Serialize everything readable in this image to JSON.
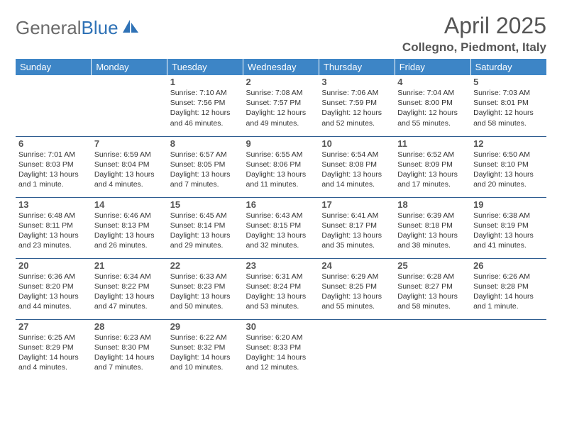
{
  "logo": {
    "text1": "General",
    "text2": "Blue"
  },
  "title": "April 2025",
  "location": "Collegno, Piedmont, Italy",
  "colors": {
    "header_bg": "#3d85c6",
    "header_text": "#ffffff",
    "border": "#2f5d91",
    "logo_gray": "#6b6b6b",
    "logo_blue": "#2f72b6",
    "title_color": "#555555",
    "daynum_color": "#555555",
    "body_text": "#333333"
  },
  "weekdays": [
    "Sunday",
    "Monday",
    "Tuesday",
    "Wednesday",
    "Thursday",
    "Friday",
    "Saturday"
  ],
  "weeks": [
    [
      null,
      null,
      {
        "n": "1",
        "sr": "7:10 AM",
        "ss": "7:56 PM",
        "dl": "12 hours and 46 minutes."
      },
      {
        "n": "2",
        "sr": "7:08 AM",
        "ss": "7:57 PM",
        "dl": "12 hours and 49 minutes."
      },
      {
        "n": "3",
        "sr": "7:06 AM",
        "ss": "7:59 PM",
        "dl": "12 hours and 52 minutes."
      },
      {
        "n": "4",
        "sr": "7:04 AM",
        "ss": "8:00 PM",
        "dl": "12 hours and 55 minutes."
      },
      {
        "n": "5",
        "sr": "7:03 AM",
        "ss": "8:01 PM",
        "dl": "12 hours and 58 minutes."
      }
    ],
    [
      {
        "n": "6",
        "sr": "7:01 AM",
        "ss": "8:03 PM",
        "dl": "13 hours and 1 minute."
      },
      {
        "n": "7",
        "sr": "6:59 AM",
        "ss": "8:04 PM",
        "dl": "13 hours and 4 minutes."
      },
      {
        "n": "8",
        "sr": "6:57 AM",
        "ss": "8:05 PM",
        "dl": "13 hours and 7 minutes."
      },
      {
        "n": "9",
        "sr": "6:55 AM",
        "ss": "8:06 PM",
        "dl": "13 hours and 11 minutes."
      },
      {
        "n": "10",
        "sr": "6:54 AM",
        "ss": "8:08 PM",
        "dl": "13 hours and 14 minutes."
      },
      {
        "n": "11",
        "sr": "6:52 AM",
        "ss": "8:09 PM",
        "dl": "13 hours and 17 minutes."
      },
      {
        "n": "12",
        "sr": "6:50 AM",
        "ss": "8:10 PM",
        "dl": "13 hours and 20 minutes."
      }
    ],
    [
      {
        "n": "13",
        "sr": "6:48 AM",
        "ss": "8:11 PM",
        "dl": "13 hours and 23 minutes."
      },
      {
        "n": "14",
        "sr": "6:46 AM",
        "ss": "8:13 PM",
        "dl": "13 hours and 26 minutes."
      },
      {
        "n": "15",
        "sr": "6:45 AM",
        "ss": "8:14 PM",
        "dl": "13 hours and 29 minutes."
      },
      {
        "n": "16",
        "sr": "6:43 AM",
        "ss": "8:15 PM",
        "dl": "13 hours and 32 minutes."
      },
      {
        "n": "17",
        "sr": "6:41 AM",
        "ss": "8:17 PM",
        "dl": "13 hours and 35 minutes."
      },
      {
        "n": "18",
        "sr": "6:39 AM",
        "ss": "8:18 PM",
        "dl": "13 hours and 38 minutes."
      },
      {
        "n": "19",
        "sr": "6:38 AM",
        "ss": "8:19 PM",
        "dl": "13 hours and 41 minutes."
      }
    ],
    [
      {
        "n": "20",
        "sr": "6:36 AM",
        "ss": "8:20 PM",
        "dl": "13 hours and 44 minutes."
      },
      {
        "n": "21",
        "sr": "6:34 AM",
        "ss": "8:22 PM",
        "dl": "13 hours and 47 minutes."
      },
      {
        "n": "22",
        "sr": "6:33 AM",
        "ss": "8:23 PM",
        "dl": "13 hours and 50 minutes."
      },
      {
        "n": "23",
        "sr": "6:31 AM",
        "ss": "8:24 PM",
        "dl": "13 hours and 53 minutes."
      },
      {
        "n": "24",
        "sr": "6:29 AM",
        "ss": "8:25 PM",
        "dl": "13 hours and 55 minutes."
      },
      {
        "n": "25",
        "sr": "6:28 AM",
        "ss": "8:27 PM",
        "dl": "13 hours and 58 minutes."
      },
      {
        "n": "26",
        "sr": "6:26 AM",
        "ss": "8:28 PM",
        "dl": "14 hours and 1 minute."
      }
    ],
    [
      {
        "n": "27",
        "sr": "6:25 AM",
        "ss": "8:29 PM",
        "dl": "14 hours and 4 minutes."
      },
      {
        "n": "28",
        "sr": "6:23 AM",
        "ss": "8:30 PM",
        "dl": "14 hours and 7 minutes."
      },
      {
        "n": "29",
        "sr": "6:22 AM",
        "ss": "8:32 PM",
        "dl": "14 hours and 10 minutes."
      },
      {
        "n": "30",
        "sr": "6:20 AM",
        "ss": "8:33 PM",
        "dl": "14 hours and 12 minutes."
      },
      null,
      null,
      null
    ]
  ],
  "labels": {
    "sunrise": "Sunrise: ",
    "sunset": "Sunset: ",
    "daylight": "Daylight: "
  }
}
